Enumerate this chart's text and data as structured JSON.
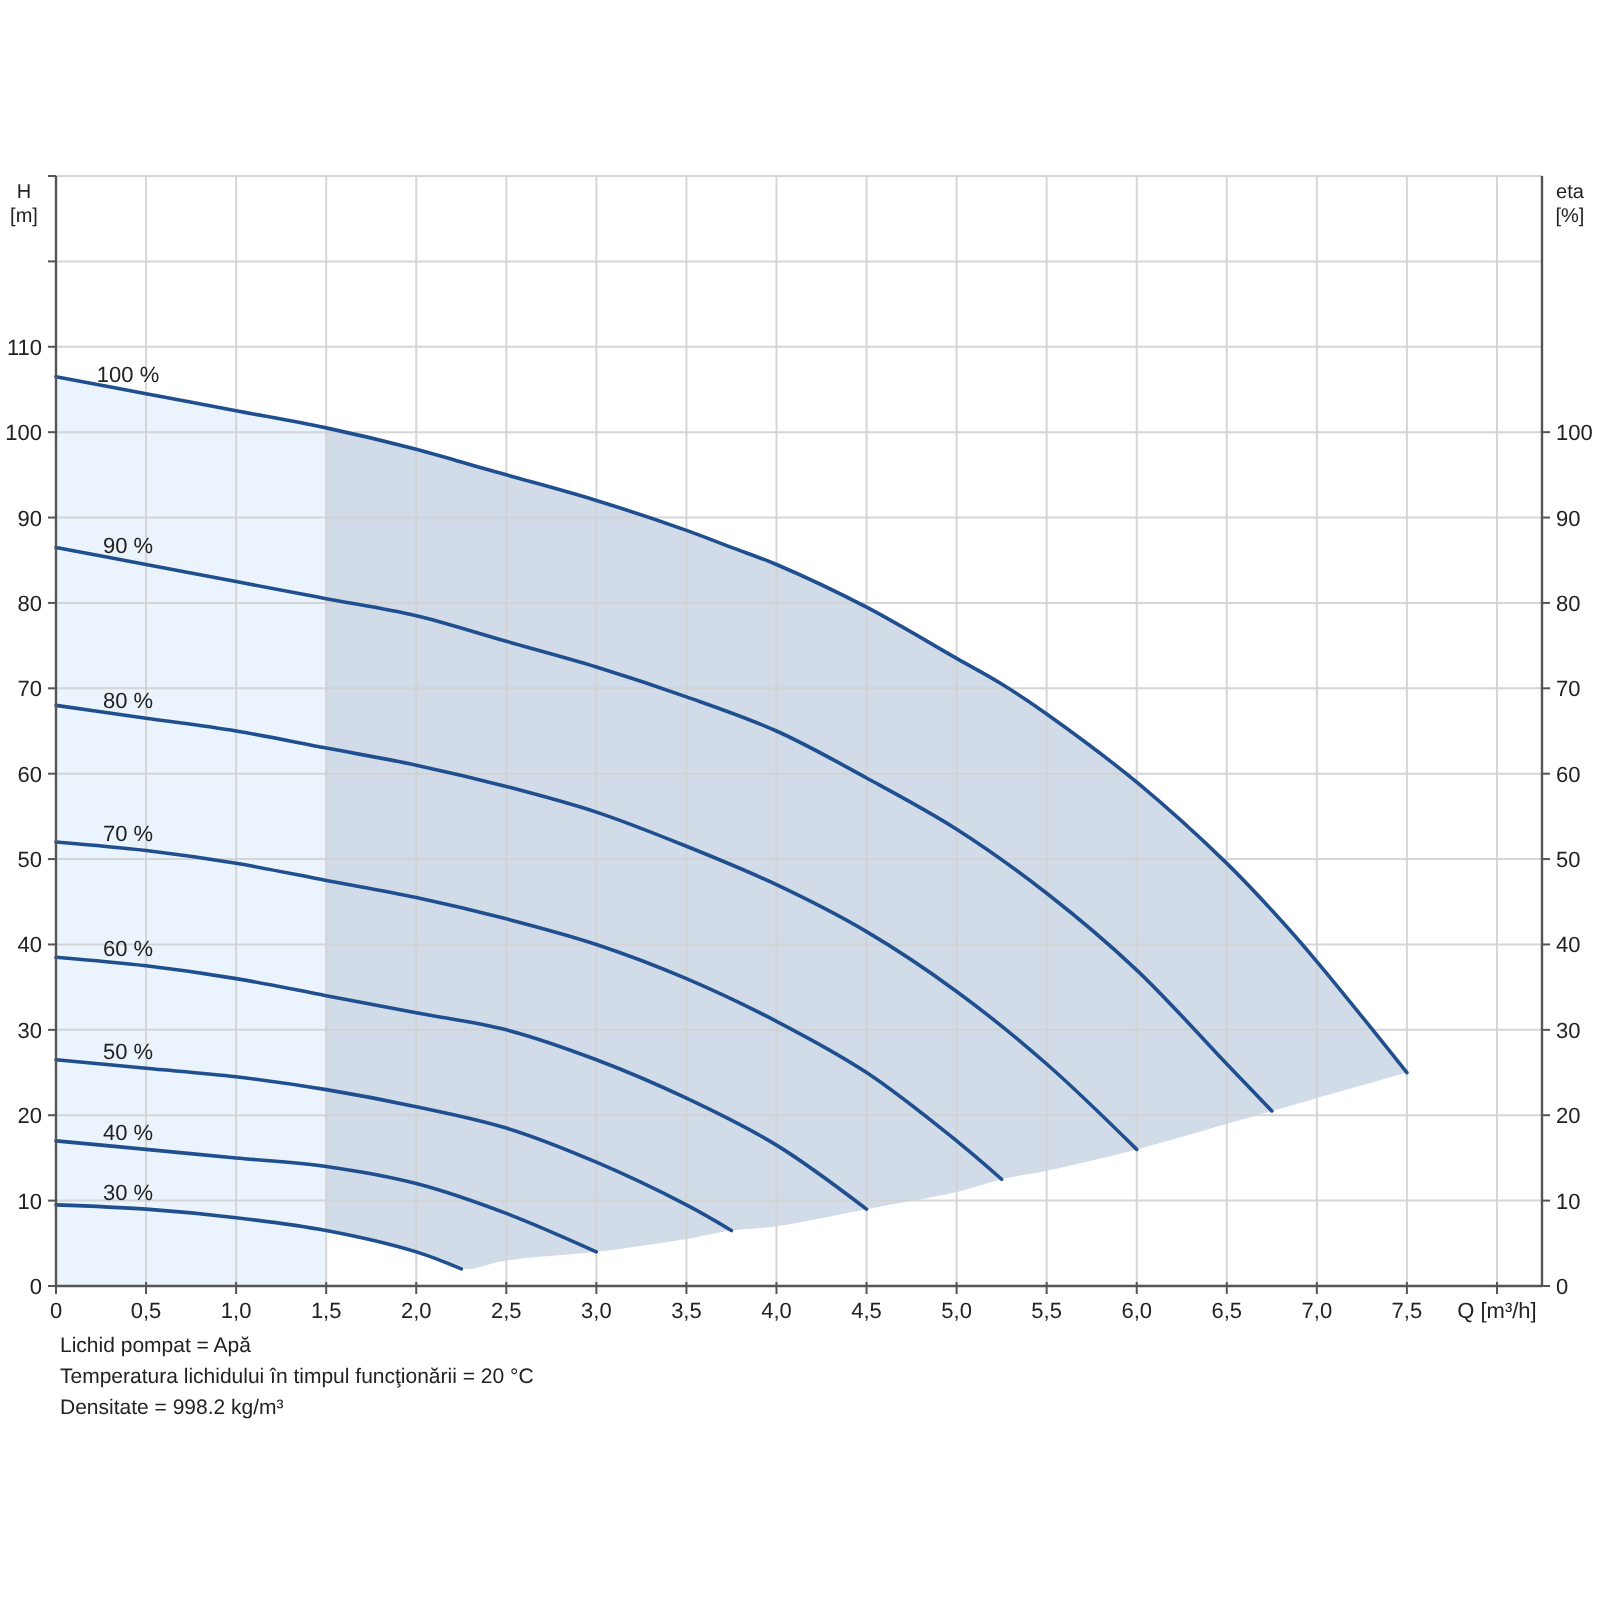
{
  "chart_data": {
    "type": "line",
    "xlabel": "Q [m³/h]",
    "ylabel": "H\n[m]",
    "y2label": "eta\n[%]",
    "xlim": [
      0,
      8.25
    ],
    "xticks": [
      0,
      {
        "value": 0.5,
        "label": "0,5"
      },
      {
        "value": 1,
        "label": "1,0"
      },
      {
        "value": 1.5,
        "label": "1,5"
      },
      {
        "value": 2,
        "label": "2,0"
      },
      {
        "value": 2.5,
        "label": "2,5"
      },
      {
        "value": 3,
        "label": "3,0"
      },
      {
        "value": 3.5,
        "label": "3,5"
      },
      {
        "value": 4,
        "label": "4,0"
      },
      {
        "value": 4.5,
        "label": "4,5"
      },
      {
        "value": 5,
        "label": "5,0"
      },
      {
        "value": 5.5,
        "label": "5,5"
      },
      {
        "value": 6,
        "label": "6,0"
      },
      {
        "value": 6.5,
        "label": "6,5"
      },
      {
        "value": 7,
        "label": "7,0"
      },
      {
        "value": 7.5,
        "label": "7,5"
      },
      {
        "value": 8,
        "label": null
      }
    ],
    "ylim": [
      0,
      130
    ],
    "yticks": [
      0,
      10,
      20,
      30,
      40,
      50,
      60,
      70,
      80,
      90,
      100,
      110,
      {
        "value": 120,
        "label": null
      },
      {
        "value": 130,
        "label": null
      }
    ],
    "y2lim": [
      0,
      130
    ],
    "y2ticks": [
      0,
      10,
      20,
      30,
      40,
      50,
      60,
      70,
      80,
      90,
      100
    ],
    "grid": true,
    "annotations": [
      "Lichid pompat = Apă",
      "Temperatura lichidului în timpul funcţionării = 20 °C",
      "Densitate = 998.2 kg/m³"
    ],
    "series": [
      {
        "type": "area",
        "color": "#ebf4fc",
        "x": [
          0,
          0.5,
          1,
          1.5
        ],
        "values": [
          106.5,
          104.5,
          102.5,
          100.5
        ]
      },
      {
        "name": "100 %",
        "color": "#1f4f8f",
        "x": [
          0,
          0.5,
          1,
          1.5,
          2,
          2.25,
          2.5,
          3,
          3.5,
          3.75,
          4,
          4.5,
          5,
          5.25,
          5.5,
          6,
          6.5,
          6.75,
          7,
          7.5
        ],
        "values": [
          106.5,
          104.5,
          102.5,
          100.5,
          98,
          96.5,
          95,
          92,
          88.5,
          86.5,
          84.5,
          79.5,
          73.5,
          70.5,
          67,
          59,
          49.5,
          44,
          38,
          25
        ],
        "lower": [
          null,
          null,
          null,
          6.5,
          4,
          2,
          3,
          4,
          5.5,
          6.5,
          7,
          9,
          11,
          12.5,
          13.5,
          16,
          19,
          20.5,
          22,
          25
        ],
        "upper": [
          null,
          null,
          null,
          100.5,
          98,
          96.5,
          95,
          92,
          88.5,
          86.5,
          84.5,
          79.5,
          73.5,
          70.5,
          67,
          59,
          49.5,
          44,
          38,
          25
        ]
      },
      {
        "name": "90 %",
        "color": "#1f4f8f",
        "x": [
          0,
          0.5,
          1,
          1.5,
          2,
          2.5,
          3,
          3.5,
          4,
          4.5,
          5,
          5.5,
          6,
          6.5,
          6.75
        ],
        "values": [
          86.5,
          84.5,
          82.5,
          80.5,
          78.5,
          75.5,
          72.5,
          69,
          65,
          59.5,
          53.5,
          46,
          37,
          26,
          20.5
        ]
      },
      {
        "name": "80 %",
        "color": "#1f4f8f",
        "x": [
          0,
          0.5,
          1,
          1.5,
          2,
          2.5,
          3,
          3.5,
          4,
          4.5,
          5,
          5.5,
          6
        ],
        "values": [
          68,
          66.5,
          65,
          63,
          61,
          58.5,
          55.5,
          51.5,
          47,
          41.5,
          34.5,
          26,
          16
        ]
      },
      {
        "name": "70 %",
        "color": "#1f4f8f",
        "x": [
          0,
          0.5,
          1,
          1.5,
          2,
          2.5,
          3,
          3.5,
          4,
          4.5,
          5,
          5.25
        ],
        "values": [
          52,
          51,
          49.5,
          47.5,
          45.5,
          43,
          40,
          36,
          31,
          25,
          17,
          12.5
        ]
      },
      {
        "name": "60 %",
        "color": "#1f4f8f",
        "x": [
          0,
          0.5,
          1,
          1.5,
          2,
          2.5,
          3,
          3.5,
          4,
          4.5
        ],
        "values": [
          38.5,
          37.5,
          36,
          34,
          32,
          30,
          26.5,
          22,
          16.5,
          9
        ]
      },
      {
        "name": "50 %",
        "color": "#1f4f8f",
        "x": [
          0,
          0.5,
          1,
          1.5,
          2,
          2.5,
          3,
          3.5,
          3.75
        ],
        "values": [
          26.5,
          25.5,
          24.5,
          23,
          21,
          18.5,
          14.5,
          9.5,
          6.5
        ]
      },
      {
        "name": "40 %",
        "color": "#1f4f8f",
        "x": [
          0,
          0.5,
          1,
          1.5,
          2,
          2.5,
          3
        ],
        "values": [
          17,
          16,
          15,
          14,
          12,
          8.5,
          4
        ]
      },
      {
        "name": "30 %",
        "color": "#1f4f8f",
        "x": [
          0,
          0.5,
          1,
          1.5,
          2,
          2.25
        ],
        "values": [
          9.5,
          9,
          8,
          6.5,
          4,
          2
        ]
      }
    ]
  }
}
